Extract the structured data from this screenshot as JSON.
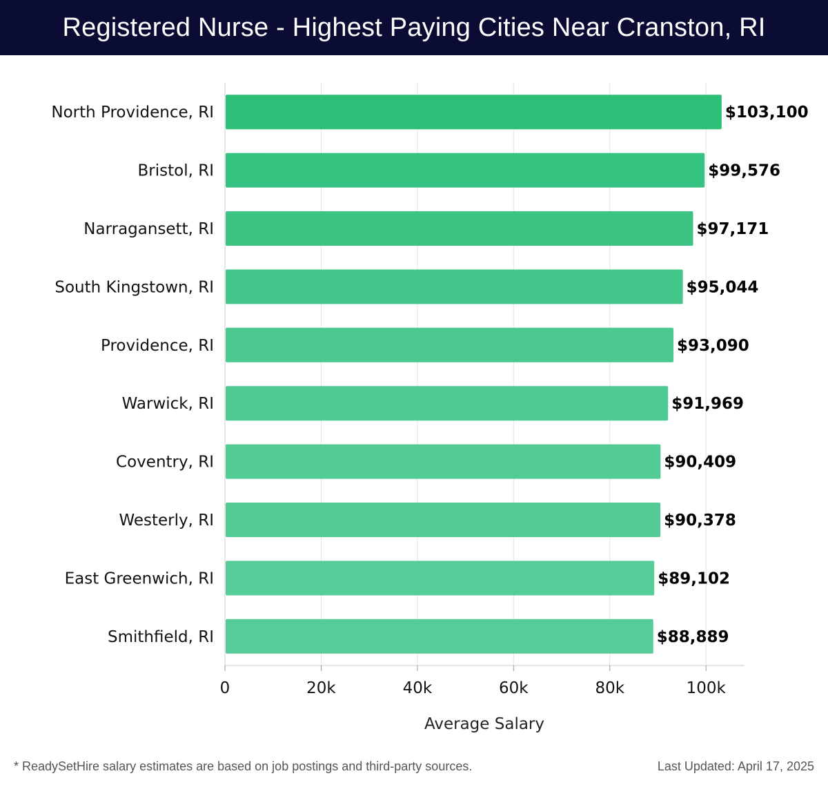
{
  "header": {
    "title": "Registered Nurse - Highest Paying Cities Near Cranston, RI"
  },
  "chart_data": {
    "type": "bar",
    "orientation": "horizontal",
    "categories": [
      "North Providence, RI",
      "Bristol, RI",
      "Narragansett, RI",
      "South Kingstown, RI",
      "Providence, RI",
      "Warwick, RI",
      "Coventry, RI",
      "Westerly, RI",
      "East Greenwich, RI",
      "Smithfield, RI"
    ],
    "values": [
      103100,
      99576,
      97171,
      95044,
      93090,
      91969,
      90409,
      90378,
      89102,
      88889
    ],
    "value_labels": [
      "$103,100",
      "$99,576",
      "$97,171",
      "$95,044",
      "$93,090",
      "$91,969",
      "$90,409",
      "$90,378",
      "$89,102",
      "$88,889"
    ],
    "xlabel": "Average Salary",
    "ylabel": "",
    "xlim": [
      0,
      108000
    ],
    "xticks": [
      0,
      20000,
      40000,
      60000,
      80000,
      100000
    ],
    "xtick_labels": [
      "0",
      "20k",
      "40k",
      "60k",
      "80k",
      "100k"
    ],
    "grid": true,
    "colors": {
      "bar_top": "#2bbf78",
      "bar_bottom": "#58cc98",
      "grid": "#e3e3e3",
      "axis": "#cccccc"
    }
  },
  "footer": {
    "note": "* ReadySetHire salary estimates are based on job postings and third-party sources.",
    "updated": "Last Updated: April 17, 2025"
  }
}
